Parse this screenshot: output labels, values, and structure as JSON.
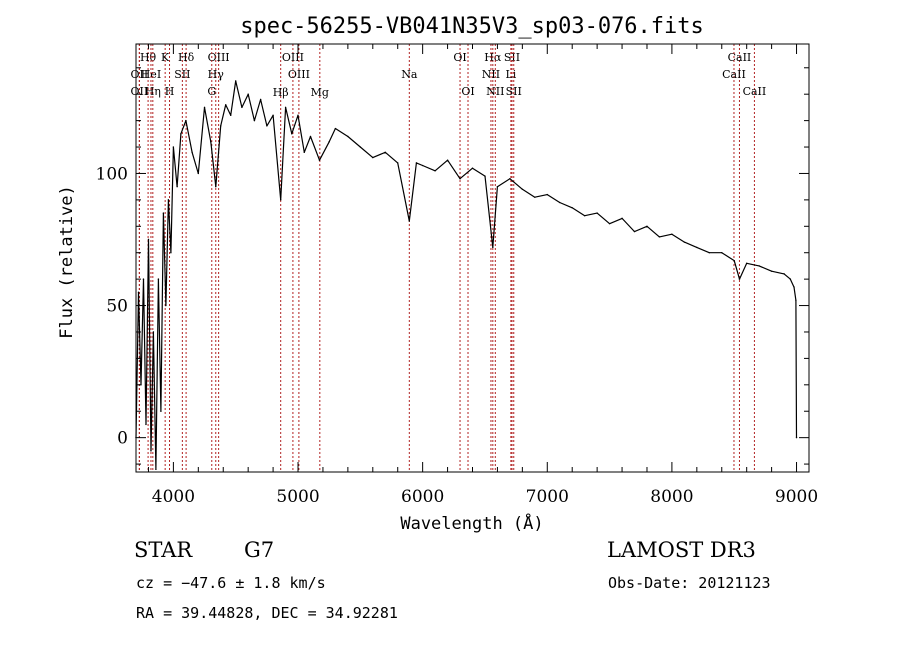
{
  "chart_data": {
    "type": "line",
    "title": "spec-56255-VB041N35V3_sp03-076.fits",
    "xlabel": "Wavelength (Å)",
    "ylabel": "Flux (relative)",
    "xlim": [
      3700,
      9100
    ],
    "ylim": [
      -13,
      149
    ],
    "x_ticks": [
      4000,
      5000,
      6000,
      7000,
      8000,
      9000
    ],
    "x_tick_labels": [
      "4000",
      "5000",
      "6000",
      "7000",
      "8000",
      "9000"
    ],
    "y_ticks": [
      0,
      50,
      100
    ],
    "y_tick_labels": [
      "0",
      "50",
      "100"
    ],
    "grid": false,
    "series": [
      {
        "name": "flux",
        "color": "#000000",
        "x": [
          3700,
          3720,
          3740,
          3760,
          3780,
          3800,
          3820,
          3840,
          3860,
          3880,
          3900,
          3920,
          3940,
          3960,
          3980,
          4000,
          4030,
          4060,
          4100,
          4150,
          4200,
          4250,
          4300,
          4340,
          4380,
          4420,
          4460,
          4500,
          4550,
          4600,
          4650,
          4700,
          4750,
          4800,
          4861,
          4900,
          4950,
          5000,
          5050,
          5100,
          5172,
          5250,
          5300,
          5400,
          5500,
          5600,
          5700,
          5800,
          5893,
          5950,
          6000,
          6100,
          6200,
          6300,
          6400,
          6500,
          6563,
          6600,
          6700,
          6800,
          6900,
          7000,
          7100,
          7200,
          7300,
          7400,
          7500,
          7600,
          7700,
          7800,
          7900,
          8000,
          8100,
          8200,
          8300,
          8400,
          8500,
          8542,
          8600,
          8700,
          8800,
          8900,
          8950,
          8980,
          8995,
          9000
        ],
        "y": [
          0,
          55,
          20,
          60,
          5,
          75,
          -5,
          40,
          -12,
          60,
          10,
          85,
          50,
          90,
          70,
          110,
          95,
          115,
          120,
          108,
          100,
          125,
          112,
          95,
          118,
          126,
          122,
          135,
          125,
          130,
          120,
          128,
          118,
          122,
          90,
          125,
          115,
          122,
          108,
          114,
          105,
          112,
          117,
          114,
          110,
          106,
          108,
          104,
          82,
          104,
          103,
          101,
          105,
          98,
          102,
          99,
          72,
          95,
          98,
          94,
          91,
          92,
          89,
          87,
          84,
          85,
          81,
          83,
          78,
          80,
          76,
          77,
          74,
          72,
          70,
          70,
          67,
          60,
          66,
          65,
          63,
          62,
          60,
          57,
          52,
          0
        ]
      }
    ],
    "spectral_lines": [
      {
        "label": "Hθ",
        "wavelength": 3797,
        "row": 0
      },
      {
        "label": "OII",
        "wavelength": 3727,
        "row": 1
      },
      {
        "label": "OII",
        "wavelength": 3727,
        "row": 2
      },
      {
        "label": "HeI",
        "wavelength": 3820,
        "row": 1
      },
      {
        "label": "Hη",
        "wavelength": 3835,
        "row": 2
      },
      {
        "label": "K",
        "wavelength": 3934,
        "row": 0
      },
      {
        "label": "SII",
        "wavelength": 4072,
        "row": 1
      },
      {
        "label": "H",
        "wavelength": 3969,
        "row": 2
      },
      {
        "label": "Hδ",
        "wavelength": 4102,
        "row": 0
      },
      {
        "label": "OIII",
        "wavelength": 4363,
        "row": 0
      },
      {
        "label": "Hγ",
        "wavelength": 4340,
        "row": 1
      },
      {
        "label": "G",
        "wavelength": 4308,
        "row": 2
      },
      {
        "label": "OIII",
        "wavelength": 4959,
        "row": 0
      },
      {
        "label": "OIII",
        "wavelength": 5007,
        "row": 1
      },
      {
        "label": "Hβ",
        "wavelength": 4861,
        "row": 3
      },
      {
        "label": "Mg",
        "wavelength": 5175,
        "row": 3
      },
      {
        "label": "Na",
        "wavelength": 5893,
        "row": 1
      },
      {
        "label": "OI",
        "wavelength": 6300,
        "row": 0
      },
      {
        "label": "OI",
        "wavelength": 6364,
        "row": 2
      },
      {
        "label": "Hα",
        "wavelength": 6563,
        "row": 0
      },
      {
        "label": "SII",
        "wavelength": 6717,
        "row": 0
      },
      {
        "label": "NII",
        "wavelength": 6548,
        "row": 1
      },
      {
        "label": "Li",
        "wavelength": 6708,
        "row": 1
      },
      {
        "label": "NII",
        "wavelength": 6583,
        "row": 2
      },
      {
        "label": "SII",
        "wavelength": 6731,
        "row": 2
      },
      {
        "label": "CaII",
        "wavelength": 8542,
        "row": 0
      },
      {
        "label": "CaII",
        "wavelength": 8498,
        "row": 1
      },
      {
        "label": "CaII",
        "wavelength": 8662,
        "row": 2
      }
    ]
  },
  "info": {
    "object_class": "STAR",
    "subclass": "G7",
    "survey": "LAMOST DR3",
    "cz": "cz = −47.6 ± 1.8 km/s",
    "obs_date": "Obs-Date: 20121123",
    "coords": "RA =  39.44828, DEC =  34.92281"
  },
  "colors": {
    "line_marker": "#b22222",
    "flux": "#000000",
    "axes": "#000000"
  }
}
